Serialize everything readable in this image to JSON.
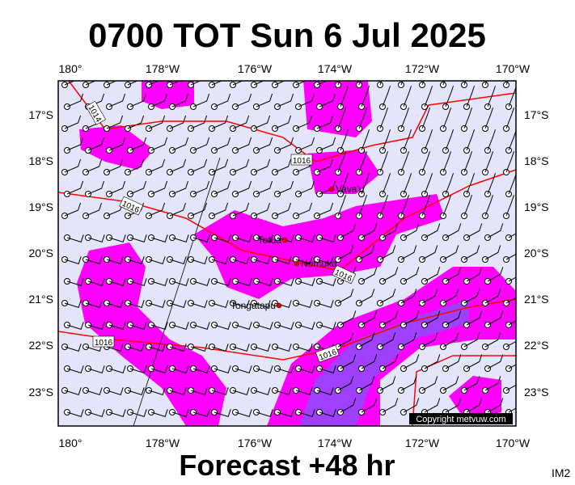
{
  "header": {
    "title": "0700 TOT Sun 6 Jul 2025"
  },
  "axes": {
    "lon_labels": [
      "180°",
      "178°W",
      "176°W",
      "174°W",
      "172°W",
      "170°W"
    ],
    "lat_labels": [
      "17°S",
      "18°S",
      "19°S",
      "20°S",
      "21°S",
      "22°S",
      "23°S"
    ]
  },
  "places": [
    "Vava'u",
    "Tofua",
    "Nomuka",
    "Tongatapu"
  ],
  "isobar_labels": [
    "1014",
    "1016",
    "1016",
    "1016",
    "1016",
    "1016"
  ],
  "copyright": "Copyright metvuw.com",
  "footer": {
    "forecast": "Forecast +48 hr",
    "code": "IM2"
  }
}
